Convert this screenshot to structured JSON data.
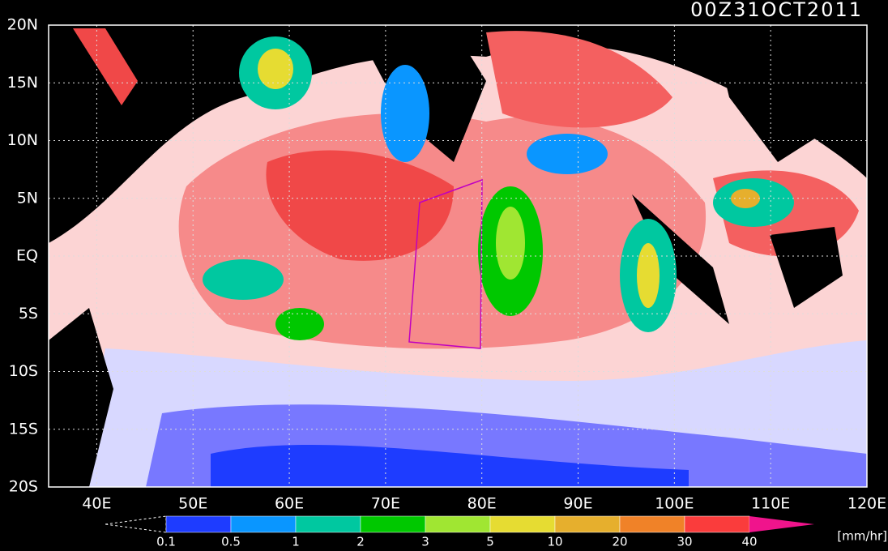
{
  "title": "00Z31OCT2011",
  "lat_labels": [
    "20N",
    "15N",
    "10N",
    "5N",
    "EQ",
    "5S",
    "10S",
    "15S",
    "20S"
  ],
  "lon_labels": [
    "40E",
    "50E",
    "60E",
    "70E",
    "80E",
    "90E",
    "100E",
    "110E",
    "120E"
  ],
  "colorbar": {
    "labels": [
      "0.1",
      "0.5",
      "1",
      "2",
      "3",
      "5",
      "10",
      "20",
      "30",
      "40"
    ],
    "colors": [
      "#1e3cff",
      "#0a96ff",
      "#00c8a0",
      "#00c800",
      "#a0e632",
      "#e6dc32",
      "#e6af2d",
      "#f08228",
      "#fa3c3c",
      "#f0148c"
    ],
    "unit": "[mm/hr]"
  }
}
